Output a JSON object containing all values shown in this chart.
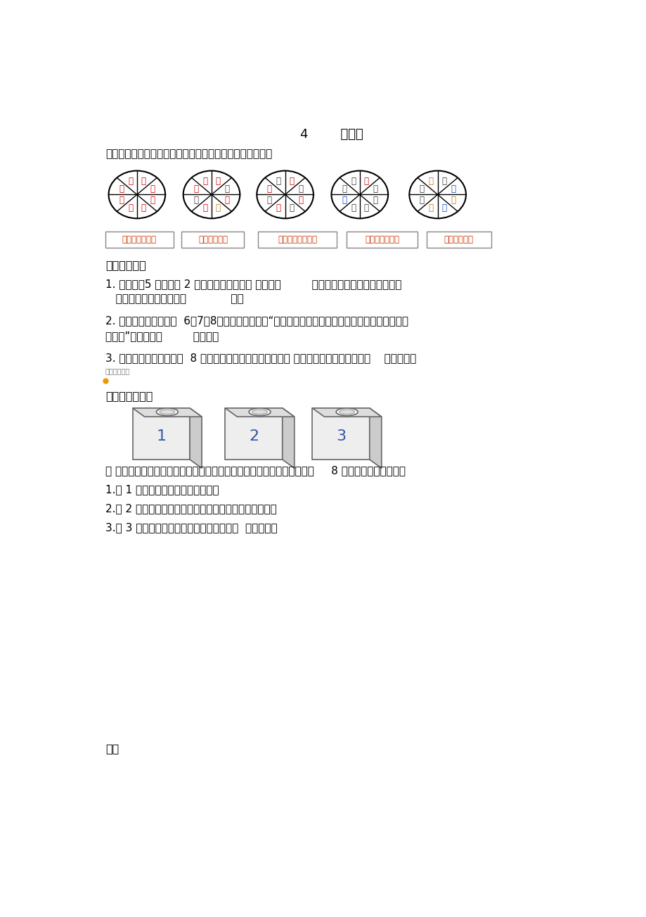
{
  "title": "4        可能性",
  "bg_color": "#ffffff",
  "section1_title": "一、如果转动一次下面的转盘，然后根据你的判断连一连。",
  "spinner_labels": [
    [
      "红",
      "红",
      "红",
      "红",
      "红",
      "红",
      "红",
      "红"
    ],
    [
      "红",
      "白",
      "红",
      "黄",
      "红",
      "白",
      "红",
      "红"
    ],
    [
      "红",
      "白",
      "红",
      "白",
      "红",
      "白",
      "红",
      "白"
    ],
    [
      "红",
      "白",
      "白",
      "白",
      "白",
      "蓝",
      "白",
      "白"
    ],
    [
      "白",
      "蓝",
      "黄",
      "蓝",
      "黄",
      "白",
      "白",
      "黄"
    ]
  ],
  "answer_labels": [
    "很可能出现红色",
    "一定出现红色",
    "不太可能出现红色",
    "不可能出现红色",
    "可能出现红色"
  ],
  "section2_title": "二、填一填。",
  "q1": "1. 盒子里有5 枚黑棋和 2 枚白棋，任意摸出一 枚，有（         ）种可能，摸出黑棋的可能性（",
  "q1b": "   ），摸出白棋的可能性（             ）。",
  "q2": "2. 三张卡片上分别写着  6、7、8，小明对小华说：“如果摆出的三位数是单数，你就获胜，否则就算",
  "q2b": "我胜。”这个游戏（         ）获胜。",
  "q3": "3. 盒中装有红球和黄球共  8 个，任意摸一个，若摸出红球的 可能性大，则盒中至少有（    ）个红球。",
  "q3_small": "（双：师资）",
  "section3_title": "三、请你设计。",
  "box_labels": [
    "1",
    "2",
    "3"
  ],
  "box_desc": "有 红、黄、、绳三色棋子若干个，根据要求分别在上面的每个盒子中放入     8 个棋子，应该怎样放？",
  "box_item1": "1.从 1 号盒中摸出的一定是红棋子。",
  "box_item2": "2.从 2 号盒中摸出的黄棋子比摸出的绳棋子的可能性大。",
  "box_item3": "3.从 3 号盒中摸出的可能是黄棋子，也可能  是绳棋子。",
  "section4_title": "四、"
}
